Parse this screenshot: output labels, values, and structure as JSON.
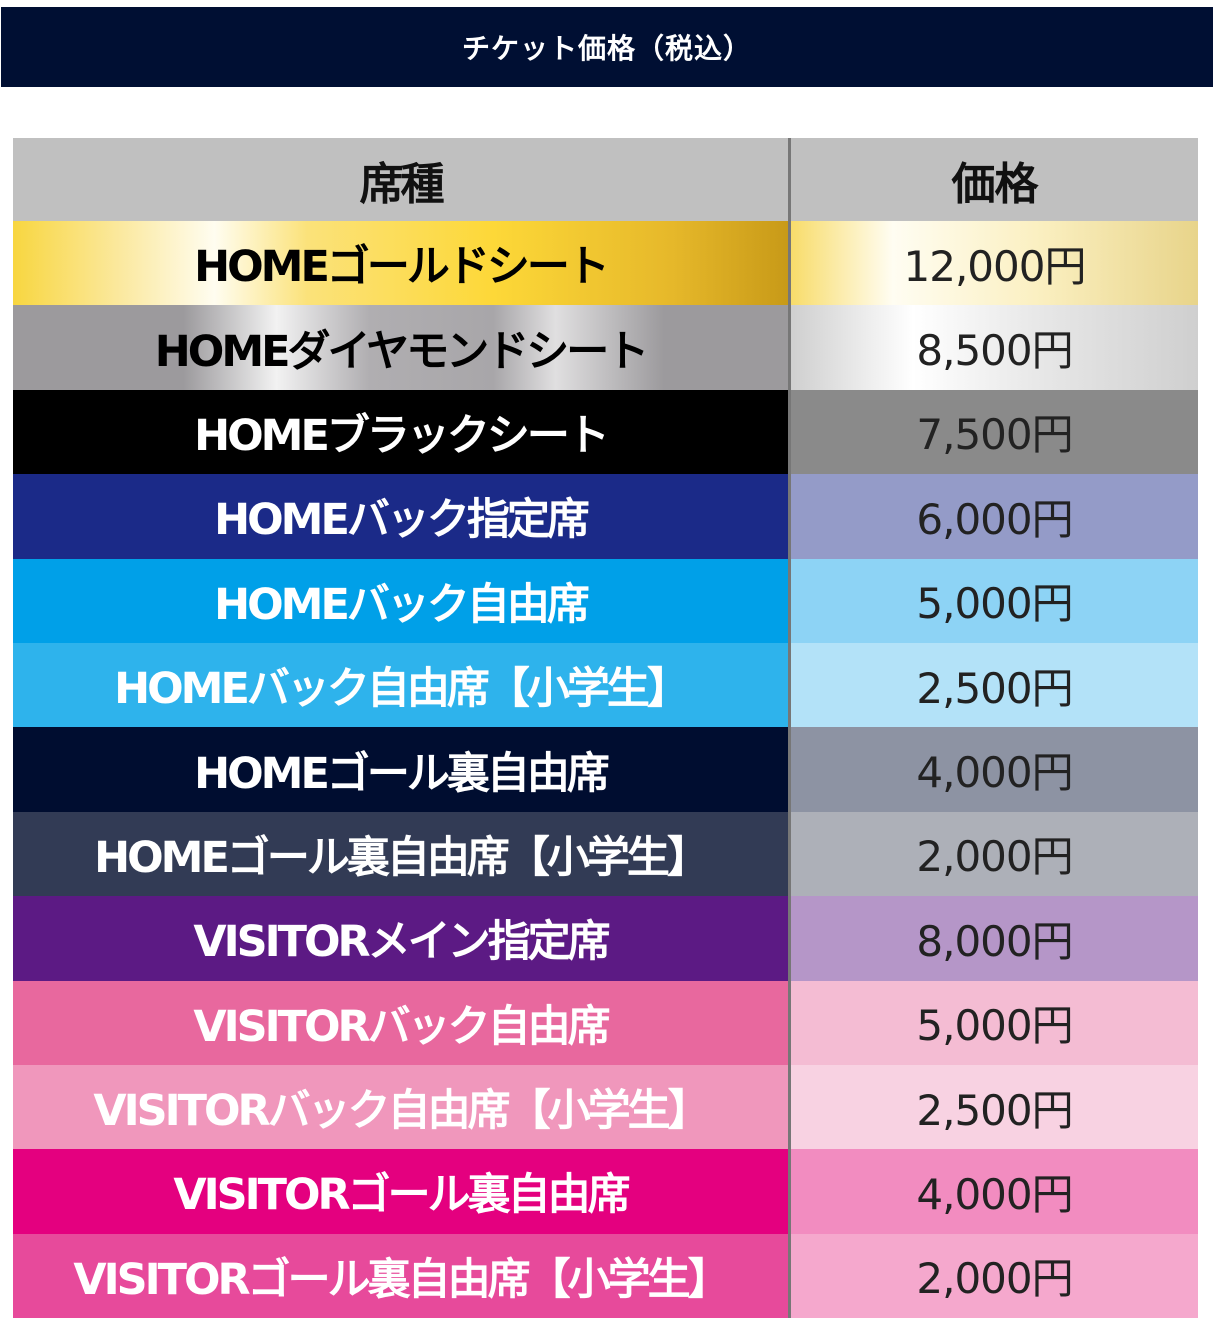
{
  "title": "チケット価格（税込）",
  "table": {
    "headers": [
      "席種",
      "価格"
    ],
    "rows": [
      {
        "seat": "HOMEゴールドシート",
        "price": "12,000円",
        "bg": "#f5d54a",
        "price_bg": "#f7e7a8",
        "text": "#000000",
        "style": "gold"
      },
      {
        "seat": "HOMEダイヤモンドシート",
        "price": "8,500円",
        "bg": "#9c9a9d",
        "price_bg": "#d6d6d6",
        "text": "#000000",
        "style": "silver"
      },
      {
        "seat": "HOMEブラックシート",
        "price": "7,500円",
        "bg": "#000000",
        "price_bg": "#8a8a8a",
        "text": "#ffffff"
      },
      {
        "seat": "HOMEバック指定席",
        "price": "6,000円",
        "bg": "#1b2a88",
        "price_bg": "#949bc8",
        "text": "#ffffff"
      },
      {
        "seat": "HOMEバック自由席",
        "price": "5,000円",
        "bg": "#00a0e8",
        "price_bg": "#8dd3f5",
        "text": "#ffffff"
      },
      {
        "seat": "HOMEバック自由席【小学生】",
        "price": "2,500円",
        "bg": "#2eb3ec",
        "price_bg": "#b3e2f8",
        "text": "#ffffff"
      },
      {
        "seat": "HOMEゴール裏自由席",
        "price": "4,000円",
        "bg": "#000d30",
        "price_bg": "#8d93a3",
        "text": "#ffffff"
      },
      {
        "seat": "HOMEゴール裏自由席【小学生】",
        "price": "2,000円",
        "bg": "#323b55",
        "price_bg": "#adb0b8",
        "text": "#ffffff"
      },
      {
        "seat": "VISITORメイン指定席",
        "price": "8,000円",
        "bg": "#5c1a84",
        "price_bg": "#b596c8",
        "text": "#ffffff"
      },
      {
        "seat": "VISITORバック自由席",
        "price": "5,000円",
        "bg": "#e8689e",
        "price_bg": "#f4bcd3",
        "text": "#ffffff"
      },
      {
        "seat": "VISITORバック自由席【小学生】",
        "price": "2,500円",
        "bg": "#f097bc",
        "price_bg": "#f8d2e2",
        "text": "#ffffff"
      },
      {
        "seat": "VISITORゴール裏自由席",
        "price": "4,000円",
        "bg": "#e4007f",
        "price_bg": "#f28cc0",
        "text": "#ffffff"
      },
      {
        "seat": "VISITORゴール裏自由席【小学生】",
        "price": "2,000円",
        "bg": "#e74a9b",
        "price_bg": "#f5a8cd",
        "text": "#ffffff"
      }
    ]
  }
}
